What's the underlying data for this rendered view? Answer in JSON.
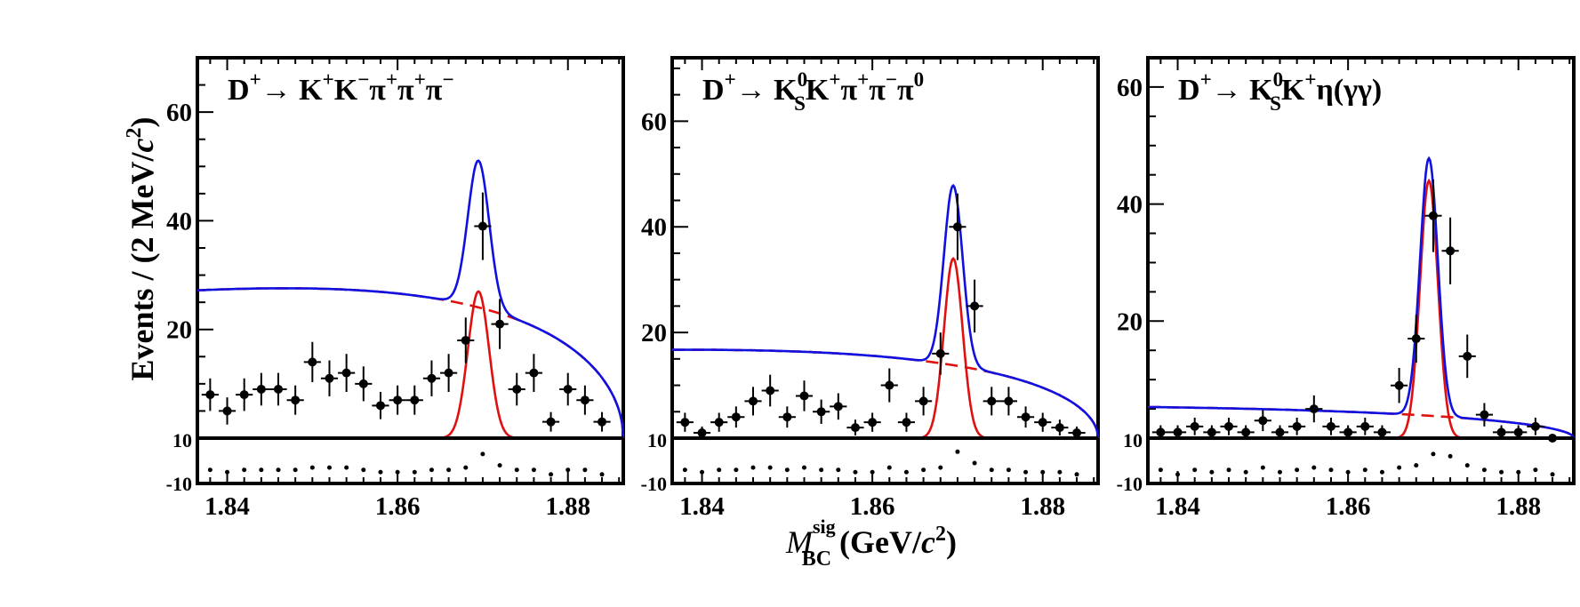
{
  "chart_data": [
    {
      "type": "scatter",
      "title_parts": [
        "D",
        "+",
        "→ K",
        "+",
        "K",
        "−",
        "π",
        "+",
        "π",
        "+",
        "π",
        "−"
      ],
      "x": [
        1.838,
        1.84,
        1.842,
        1.844,
        1.846,
        1.848,
        1.85,
        1.852,
        1.854,
        1.856,
        1.858,
        1.86,
        1.862,
        1.864,
        1.866,
        1.868,
        1.87,
        1.872,
        1.874,
        1.876,
        1.878,
        1.88,
        1.882,
        1.884
      ],
      "y": [
        8,
        5,
        8,
        9,
        9,
        7,
        14,
        11,
        12,
        10,
        6,
        7,
        7,
        11,
        12,
        18,
        39,
        21,
        9,
        12,
        3,
        9,
        7,
        3
      ],
      "yerr": [
        3,
        2.5,
        3,
        3,
        3,
        2.7,
        3.7,
        3.3,
        3.5,
        3.2,
        2.5,
        2.7,
        2.7,
        3.3,
        3.5,
        4.2,
        6.2,
        4.6,
        3,
        3.5,
        1.8,
        3,
        2.7,
        1.8
      ],
      "pull": [
        -4,
        -5,
        -4,
        -4,
        -4,
        -4,
        -3,
        -3,
        -3,
        -4,
        -5,
        -5,
        -5,
        -4,
        -4,
        -3,
        3,
        -2,
        -4,
        -4,
        -6,
        -4,
        -4,
        -6
      ],
      "signal": {
        "mean": 1.8695,
        "sigma": 0.00125,
        "amp": 27
      },
      "background": {
        "a": 9,
        "m0": 1.8865,
        "c": 12
      },
      "ylim": [
        0,
        70
      ],
      "yticks": [
        20,
        40,
        60
      ],
      "ylabels": [
        "20",
        "40",
        "60"
      ],
      "pull_ylim": [
        -10,
        10
      ],
      "pull_labels": [
        "10",
        "-10"
      ],
      "xlim": [
        1.8365,
        1.8865
      ],
      "xticks": [
        1.84,
        1.86,
        1.88
      ],
      "xlabels": [
        "1.84",
        "1.86",
        "1.88"
      ]
    },
    {
      "type": "scatter",
      "title_parts": [
        "D",
        "+",
        "→ K",
        "0",
        "S",
        "K",
        "+",
        "π",
        "+",
        "π",
        "−",
        "π",
        "0"
      ],
      "x": [
        1.838,
        1.84,
        1.842,
        1.844,
        1.846,
        1.848,
        1.85,
        1.852,
        1.854,
        1.856,
        1.858,
        1.86,
        1.862,
        1.864,
        1.866,
        1.868,
        1.87,
        1.872,
        1.874,
        1.876,
        1.878,
        1.88,
        1.882,
        1.884
      ],
      "y": [
        3,
        1,
        3,
        4,
        7,
        9,
        4,
        8,
        5,
        6,
        2,
        3,
        10,
        3,
        7,
        16,
        40,
        25,
        7,
        7,
        4,
        3,
        2,
        1
      ],
      "yerr": [
        1.8,
        1.2,
        1.8,
        2,
        2.7,
        3,
        2,
        2.9,
        2.3,
        2.5,
        1.5,
        1.8,
        3.2,
        1.8,
        2.7,
        4,
        6.3,
        5,
        2.7,
        2.7,
        2,
        1.8,
        1.5,
        1.2
      ],
      "pull": [
        -4,
        -5,
        -4,
        -4,
        -3,
        -3,
        -4,
        -3,
        -4,
        -4,
        -5,
        -5,
        -3,
        -5,
        -4,
        -3,
        4,
        -1,
        -4,
        -4,
        -5,
        -5,
        -5,
        -6
      ],
      "signal": {
        "mean": 1.8695,
        "sigma": 0.0011,
        "amp": 34
      },
      "background": {
        "a": 5,
        "m0": 1.8865,
        "c": 10
      },
      "ylim": [
        0,
        72
      ],
      "yticks": [
        20,
        40,
        60
      ],
      "ylabels": [
        "20",
        "40",
        "60"
      ],
      "pull_ylim": [
        -10,
        10
      ],
      "pull_labels": [
        "10",
        "-10"
      ],
      "xlim": [
        1.8365,
        1.8865
      ],
      "xticks": [
        1.84,
        1.86,
        1.88
      ],
      "xlabels": [
        "1.84",
        "1.86",
        "1.88"
      ]
    },
    {
      "type": "scatter",
      "title_parts": [
        "D",
        "+",
        "→ K",
        "0",
        "S",
        "K",
        "+",
        "η(γγ)"
      ],
      "x": [
        1.838,
        1.84,
        1.842,
        1.844,
        1.846,
        1.848,
        1.85,
        1.852,
        1.854,
        1.856,
        1.858,
        1.86,
        1.862,
        1.864,
        1.866,
        1.868,
        1.87,
        1.872,
        1.874,
        1.876,
        1.878,
        1.88,
        1.882,
        1.884
      ],
      "y": [
        1,
        1,
        2,
        1,
        2,
        1,
        3,
        1,
        2,
        5,
        2,
        1,
        2,
        1,
        9,
        17,
        38,
        32,
        14,
        4,
        1,
        1,
        2,
        0
      ],
      "yerr": [
        1.2,
        1.2,
        1.5,
        1.2,
        1.5,
        1.2,
        1.8,
        1.2,
        1.5,
        2.3,
        1.5,
        1.2,
        1.5,
        1.2,
        3,
        4.1,
        6.2,
        5.7,
        3.7,
        2,
        1.2,
        1.2,
        1.5,
        0.5
      ],
      "pull": [
        -4,
        -6,
        -4,
        -5,
        -4,
        -5,
        -3,
        -5,
        -4,
        -3,
        -4,
        -5,
        -4,
        -5,
        -3,
        -2,
        3,
        2,
        -2,
        -4,
        -5,
        -5,
        -4,
        -6
      ],
      "signal": {
        "mean": 1.8695,
        "sigma": 0.00105,
        "amp": 44
      },
      "background": {
        "a": 1.3,
        "m0": 1.8865,
        "c": 6
      },
      "ylim": [
        0,
        65
      ],
      "yticks": [
        20,
        40,
        60
      ],
      "ylabels": [
        "20",
        "40",
        "60"
      ],
      "pull_ylim": [
        -10,
        10
      ],
      "pull_labels": [
        "10",
        "-10"
      ],
      "xlim": [
        1.8365,
        1.8865
      ],
      "xticks": [
        1.84,
        1.86,
        1.88
      ],
      "xlabels": [
        "1.84",
        "1.86",
        "1.88"
      ]
    }
  ],
  "ylabel": {
    "main": "Events / (2 MeV/",
    "c": "c",
    "sup": "2",
    "close": ")"
  },
  "xlabel": {
    "m": "M",
    "sup": "sig",
    "sub": "BC",
    "rest": " (GeV/",
    "c": "c",
    "c_sup": "2",
    "close": ")"
  }
}
